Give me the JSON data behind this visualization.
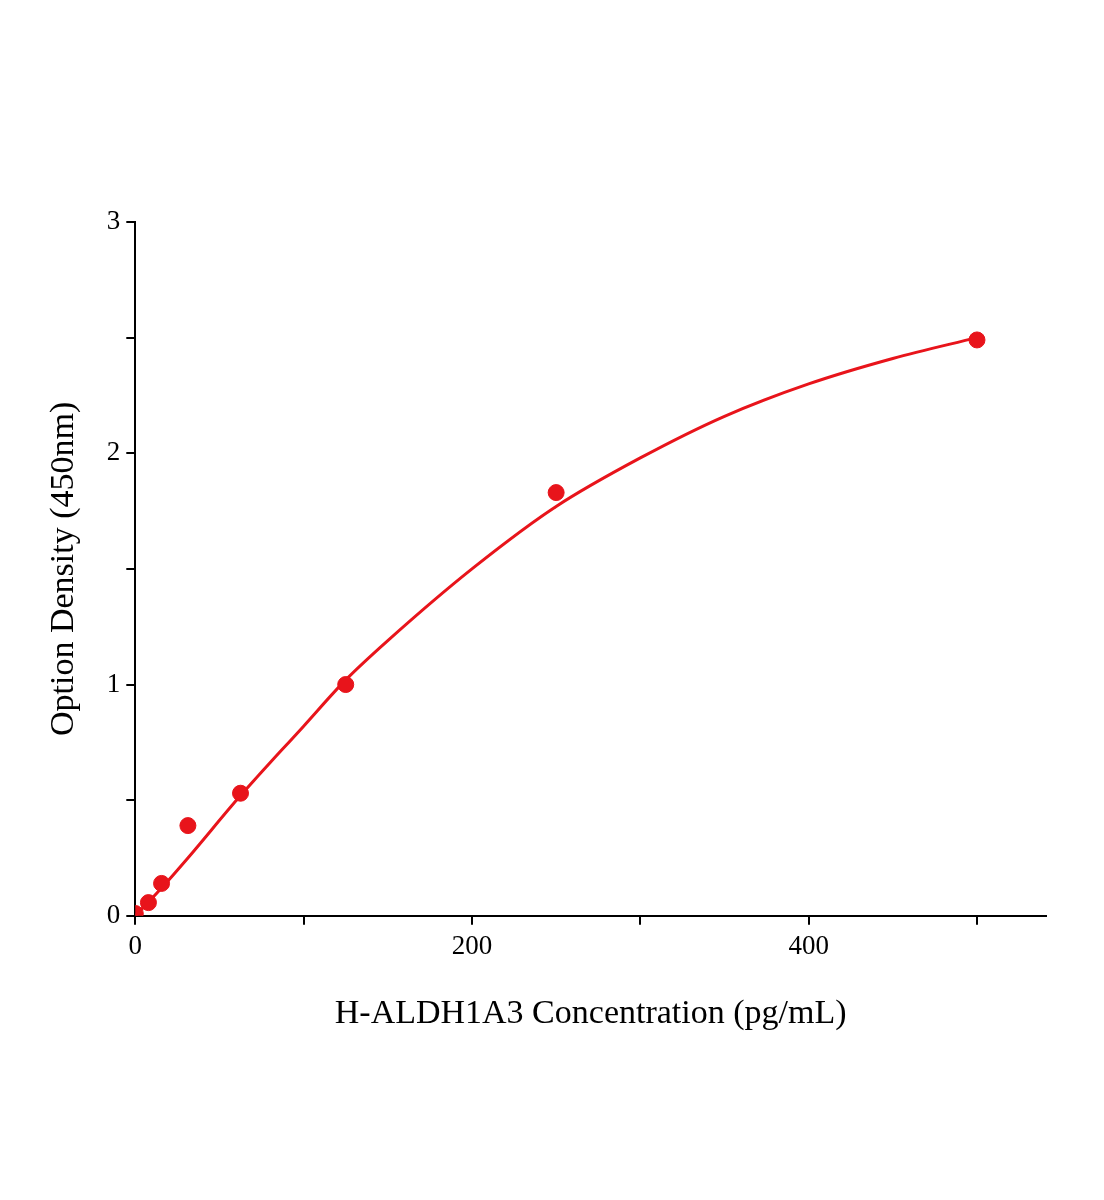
{
  "chart_data": {
    "type": "scatter",
    "xlabel": "H-ALDH1A3 Concentration (pg/mL)",
    "ylabel": "Option Density (450nm)",
    "xlim": [
      0,
      541
    ],
    "xticks": [
      0,
      {
        "value": 100,
        "label": null
      },
      200,
      {
        "value": 300,
        "label": null
      },
      400,
      {
        "value": 500,
        "label": null
      }
    ],
    "ylim": [
      0,
      3
    ],
    "yticks": [
      0,
      {
        "value": 0.5,
        "label": null
      },
      1,
      {
        "value": 1.5,
        "label": null
      },
      2,
      {
        "value": 2.5,
        "label": null
      },
      3
    ],
    "grid": false,
    "legend": false,
    "marker": "circle",
    "series": [
      {
        "color": "#e8141b",
        "x": [
          0,
          7.8,
          15.6,
          31.25,
          62.5,
          125,
          250,
          500
        ],
        "values": [
          0.01,
          0.057,
          0.14,
          0.39,
          0.53,
          1.0,
          1.83,
          2.49
        ]
      },
      {
        "type": "line",
        "marker": "none",
        "color": "#e8141b",
        "x": [
          0,
          15.6,
          31.25,
          62.5,
          100,
          125,
          150,
          200,
          250,
          300,
          350,
          400,
          450,
          500
        ],
        "values": [
          0.0,
          0.12,
          0.25,
          0.52,
          0.82,
          1.02,
          1.19,
          1.5,
          1.77,
          1.98,
          2.16,
          2.3,
          2.41,
          2.5
        ]
      }
    ]
  }
}
